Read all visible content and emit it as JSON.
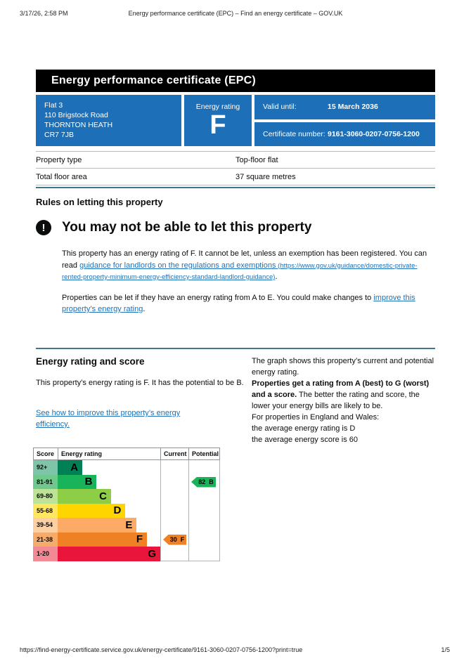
{
  "print_header": {
    "datetime": "3/17/26, 2:58 PM",
    "title": "Energy performance certificate (EPC) – Find an energy certificate – GOV.UK"
  },
  "banner": {
    "title": "Energy performance certificate (EPC)"
  },
  "certificate": {
    "address_line1": "Flat 3",
    "address_line2": "110 Brigstock Road",
    "address_line3": "THORNTON HEATH",
    "address_line4": "CR7 7JB",
    "energy_rating_label": "Energy rating",
    "energy_rating": "F",
    "valid_until_label": "Valid until:",
    "valid_until": "15 March 2036",
    "certificate_number_label": "Certificate number:",
    "certificate_number": "9161-3060-0207-0756-1200",
    "box_color": "#1d70b8"
  },
  "summary": {
    "rows": [
      {
        "label": "Property type",
        "value": "Top-floor flat"
      },
      {
        "label": "Total floor area",
        "value": "37 square metres"
      }
    ]
  },
  "rules": {
    "heading": "Rules on letting this property",
    "warning_icon": "!",
    "warning_title": "You may not be able to let this property",
    "p1_before": "This property has an energy rating of F. It cannot be let, unless an exemption has been registered. You can read ",
    "p1_link_text": "guidance for landlords on the regulations and exemptions",
    "p1_link_url": " (https://www.gov.uk/guidance/domestic-private-rented-property-minimum-energy-efficiency-standard-landlord-guidance)",
    "p1_after": ".",
    "p2_before": "Properties can be let if they have an energy rating from A to E. You could make changes to ",
    "p2_link_text": "improve this property’s energy rating",
    "p2_after": "."
  },
  "rating_section": {
    "heading": "Energy rating and score",
    "intro": "This property’s energy rating is F. It has the potential to be B.",
    "improve_link": "See how to improve this property’s energy efficiency.",
    "graph_note": "The graph shows this property’s current and potential energy rating.",
    "explain_bold": "Properties get a rating from A (best) to G (worst) and a score.",
    "explain_rest": " The better the rating and score, the lower your energy bills are likely to be.",
    "region_note": "For properties in England and Wales:",
    "avg_rating_line": "the average energy rating is D",
    "avg_score_line": "the average energy score is 60"
  },
  "chart_data": {
    "type": "bar",
    "variant": "epc-rating-bands",
    "columns": [
      "Score",
      "Energy rating",
      "Current",
      "Potential"
    ],
    "bands": [
      {
        "score": "92+",
        "letter": "A",
        "color": "#008054",
        "tint": "#7ec4a9",
        "width_pct": 24
      },
      {
        "score": "81-91",
        "letter": "B",
        "color": "#19b459",
        "tint": "#6fc98d",
        "width_pct": 38
      },
      {
        "score": "69-80",
        "letter": "C",
        "color": "#8dce46",
        "tint": "#bce396",
        "width_pct": 52
      },
      {
        "score": "55-68",
        "letter": "D",
        "color": "#ffd500",
        "tint": "#ffe763",
        "width_pct": 66
      },
      {
        "score": "39-54",
        "letter": "E",
        "color": "#fcaa65",
        "tint": "#fdd0a4",
        "width_pct": 77
      },
      {
        "score": "21-38",
        "letter": "F",
        "color": "#ef8023",
        "tint": "#f5ab69",
        "width_pct": 87
      },
      {
        "score": "1-20",
        "letter": "G",
        "color": "#e9153b",
        "tint": "#f28a96",
        "width_pct": 100
      }
    ],
    "current": {
      "score": "30",
      "band": "F",
      "color": "#ef8023"
    },
    "potential": {
      "score": "82",
      "band": "B",
      "color": "#19b459"
    }
  },
  "print_footer": {
    "url": "https://find-energy-certificate.service.gov.uk/energy-certificate/9161-3060-0207-0756-1200?print=true",
    "page": "1/5"
  }
}
